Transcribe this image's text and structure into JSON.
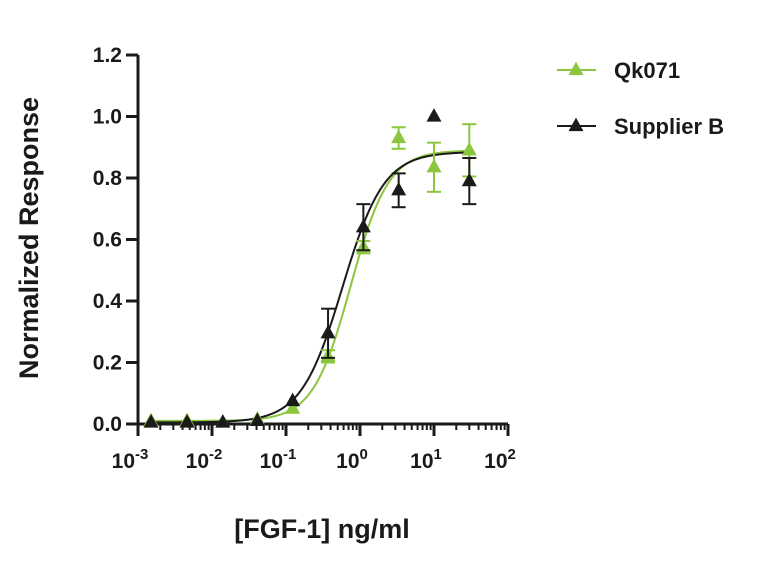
{
  "chart_data": {
    "type": "scatter",
    "title": "",
    "xlabel": "[FGF-1] ng/ml",
    "ylabel": "Normalized Response",
    "xscale": "log",
    "xlim": [
      0.001,
      100
    ],
    "ylim": [
      0,
      1.2
    ],
    "xticks": [
      {
        "value": 0.001,
        "base": "10",
        "exp": "-3"
      },
      {
        "value": 0.01,
        "base": "10",
        "exp": "-2"
      },
      {
        "value": 0.1,
        "base": "10",
        "exp": "-1"
      },
      {
        "value": 1,
        "base": "10",
        "exp": "0"
      },
      {
        "value": 10,
        "base": "10",
        "exp": "1"
      },
      {
        "value": 100,
        "base": "10",
        "exp": "2"
      }
    ],
    "yticks": [
      {
        "value": 0.0,
        "label": "0.0"
      },
      {
        "value": 0.2,
        "label": "0.2"
      },
      {
        "value": 0.4,
        "label": "0.4"
      },
      {
        "value": 0.6,
        "label": "0.6"
      },
      {
        "value": 0.8,
        "label": "0.8"
      },
      {
        "value": 1.0,
        "label": "1.0"
      },
      {
        "value": 1.2,
        "label": "1.2"
      }
    ],
    "grid": false,
    "legend_position": "top-right",
    "series": [
      {
        "name": "Qk071",
        "color": "#8cc63f",
        "marker": "triangle",
        "points": [
          {
            "x": 0.0015,
            "y": 0.01,
            "err": 0
          },
          {
            "x": 0.0046,
            "y": 0.01,
            "err": 0
          },
          {
            "x": 0.014,
            "y": 0.005,
            "err": 0
          },
          {
            "x": 0.041,
            "y": 0.015,
            "err": 0
          },
          {
            "x": 0.123,
            "y": 0.05,
            "err": 0
          },
          {
            "x": 0.37,
            "y": 0.22,
            "err": 0.02
          },
          {
            "x": 1.11,
            "y": 0.575,
            "err": 0.02
          },
          {
            "x": 3.33,
            "y": 0.93,
            "err": 0.035
          },
          {
            "x": 10,
            "y": 0.835,
            "err": 0.08
          },
          {
            "x": 30,
            "y": 0.89,
            "err": 0.085
          }
        ],
        "fit": {
          "bottom": 0.01,
          "top": 0.89,
          "ec50": 0.75,
          "hill": 1.7
        }
      },
      {
        "name": "Supplier B",
        "color": "#1a1a1a",
        "marker": "triangle",
        "points": [
          {
            "x": 0.0015,
            "y": 0.005,
            "err": 0
          },
          {
            "x": 0.0046,
            "y": 0.005,
            "err": 0
          },
          {
            "x": 0.014,
            "y": 0.005,
            "err": 0
          },
          {
            "x": 0.041,
            "y": 0.01,
            "err": 0
          },
          {
            "x": 0.123,
            "y": 0.075,
            "err": 0
          },
          {
            "x": 0.37,
            "y": 0.295,
            "err": 0.08
          },
          {
            "x": 1.11,
            "y": 0.64,
            "err": 0.075
          },
          {
            "x": 3.33,
            "y": 0.76,
            "err": 0.055
          },
          {
            "x": 10,
            "y": 1.0,
            "err": 0
          },
          {
            "x": 30,
            "y": 0.79,
            "err": 0.075
          }
        ],
        "fit": {
          "bottom": 0.005,
          "top": 0.885,
          "ec50": 0.58,
          "hill": 1.55
        }
      }
    ]
  }
}
